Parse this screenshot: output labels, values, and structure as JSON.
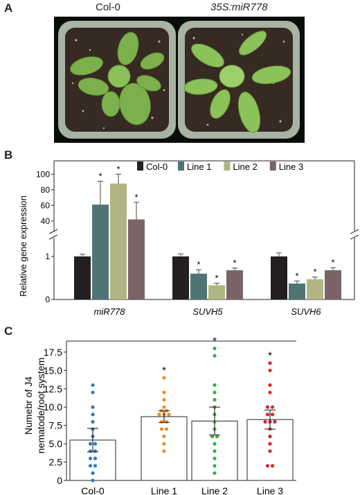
{
  "panels": {
    "a": {
      "letter": "A",
      "labels": [
        "Col-0",
        "35S:miR778"
      ]
    },
    "b": {
      "letter": "B",
      "ylabel": "Relative gene expression",
      "legend": [
        "Col-0",
        "Line 1",
        "Line 2",
        "Line 3"
      ],
      "groups": [
        "miR778",
        "SUVH5",
        "SUVH6"
      ],
      "upper_ticks": [
        "40",
        "60",
        "80",
        "100"
      ],
      "lower_ticks": [
        "0",
        "1"
      ],
      "sig_mark": "*"
    },
    "c": {
      "letter": "C",
      "ylabel_line1": "Numebr of J4",
      "ylabel_line2": "nematode/root system",
      "categories": [
        "Col-0",
        "Line 1",
        "Line 2",
        "Line 3"
      ],
      "ticks": [
        "0",
        "2.5",
        "5.0",
        "7.5",
        "10.0",
        "12.5",
        "15.0",
        "17.5"
      ],
      "sig_mark": "*"
    }
  },
  "colors": {
    "col0": "#231f20",
    "line1": "#4e7476",
    "line2": "#b0b583",
    "line3": "#7b6467",
    "dots": [
      "#2f7cbf",
      "#f08a22",
      "#3aae3a",
      "#d6282a"
    ]
  },
  "chart_data": [
    {
      "type": "bar",
      "title": "",
      "xlabel": "",
      "ylabel": "Relative gene expression",
      "categories": [
        "miR778",
        "SUVH5",
        "SUVH6"
      ],
      "broken_axis": true,
      "series": [
        {
          "name": "Col-0",
          "values": [
            1.0,
            1.0,
            1.0
          ],
          "errors": [
            0.05,
            0.06,
            0.08
          ],
          "significant": [
            false,
            false,
            false
          ]
        },
        {
          "name": "Line 1",
          "values": [
            61,
            0.6,
            0.37
          ],
          "errors": [
            30,
            0.09,
            0.06
          ],
          "significant": [
            true,
            true,
            true
          ]
        },
        {
          "name": "Line 2",
          "values": [
            88,
            0.33,
            0.47
          ],
          "errors": [
            12,
            0.05,
            0.05
          ],
          "significant": [
            true,
            true,
            true
          ]
        },
        {
          "name": "Line 3",
          "values": [
            42,
            0.68,
            0.68
          ],
          "errors": [
            22,
            0.05,
            0.06
          ],
          "significant": [
            true,
            true,
            true
          ]
        }
      ],
      "ylim_lower": [
        0,
        1.4
      ],
      "ylim_upper": [
        30,
        110
      ]
    },
    {
      "type": "bar",
      "title": "",
      "xlabel": "",
      "ylabel": "Numebr of J4 nematode/root system",
      "categories": [
        "Col-0",
        "Line 1",
        "Line 2",
        "Line 3"
      ],
      "values": [
        5.5,
        8.7,
        8.1,
        8.3
      ],
      "errors": [
        1.6,
        0.8,
        1.9,
        1.3
      ],
      "significant": [
        false,
        true,
        true,
        true
      ],
      "points": [
        [
          13,
          12,
          10,
          9,
          8,
          7,
          6,
          5,
          5,
          4,
          4,
          3,
          3,
          2,
          2,
          1,
          0
        ],
        [
          14,
          12,
          11,
          10,
          9.5,
          9.5,
          9,
          9,
          9,
          8,
          8,
          7,
          7,
          6,
          5,
          4
        ],
        [
          18,
          17,
          13,
          12,
          11,
          10,
          9,
          8,
          7,
          6,
          6,
          5,
          4,
          3,
          2,
          1
        ],
        [
          16,
          15,
          13,
          12,
          10,
          10,
          9,
          9,
          8,
          8,
          8,
          7,
          6,
          5,
          4,
          2,
          2
        ]
      ],
      "ylim": [
        0,
        19
      ]
    }
  ]
}
